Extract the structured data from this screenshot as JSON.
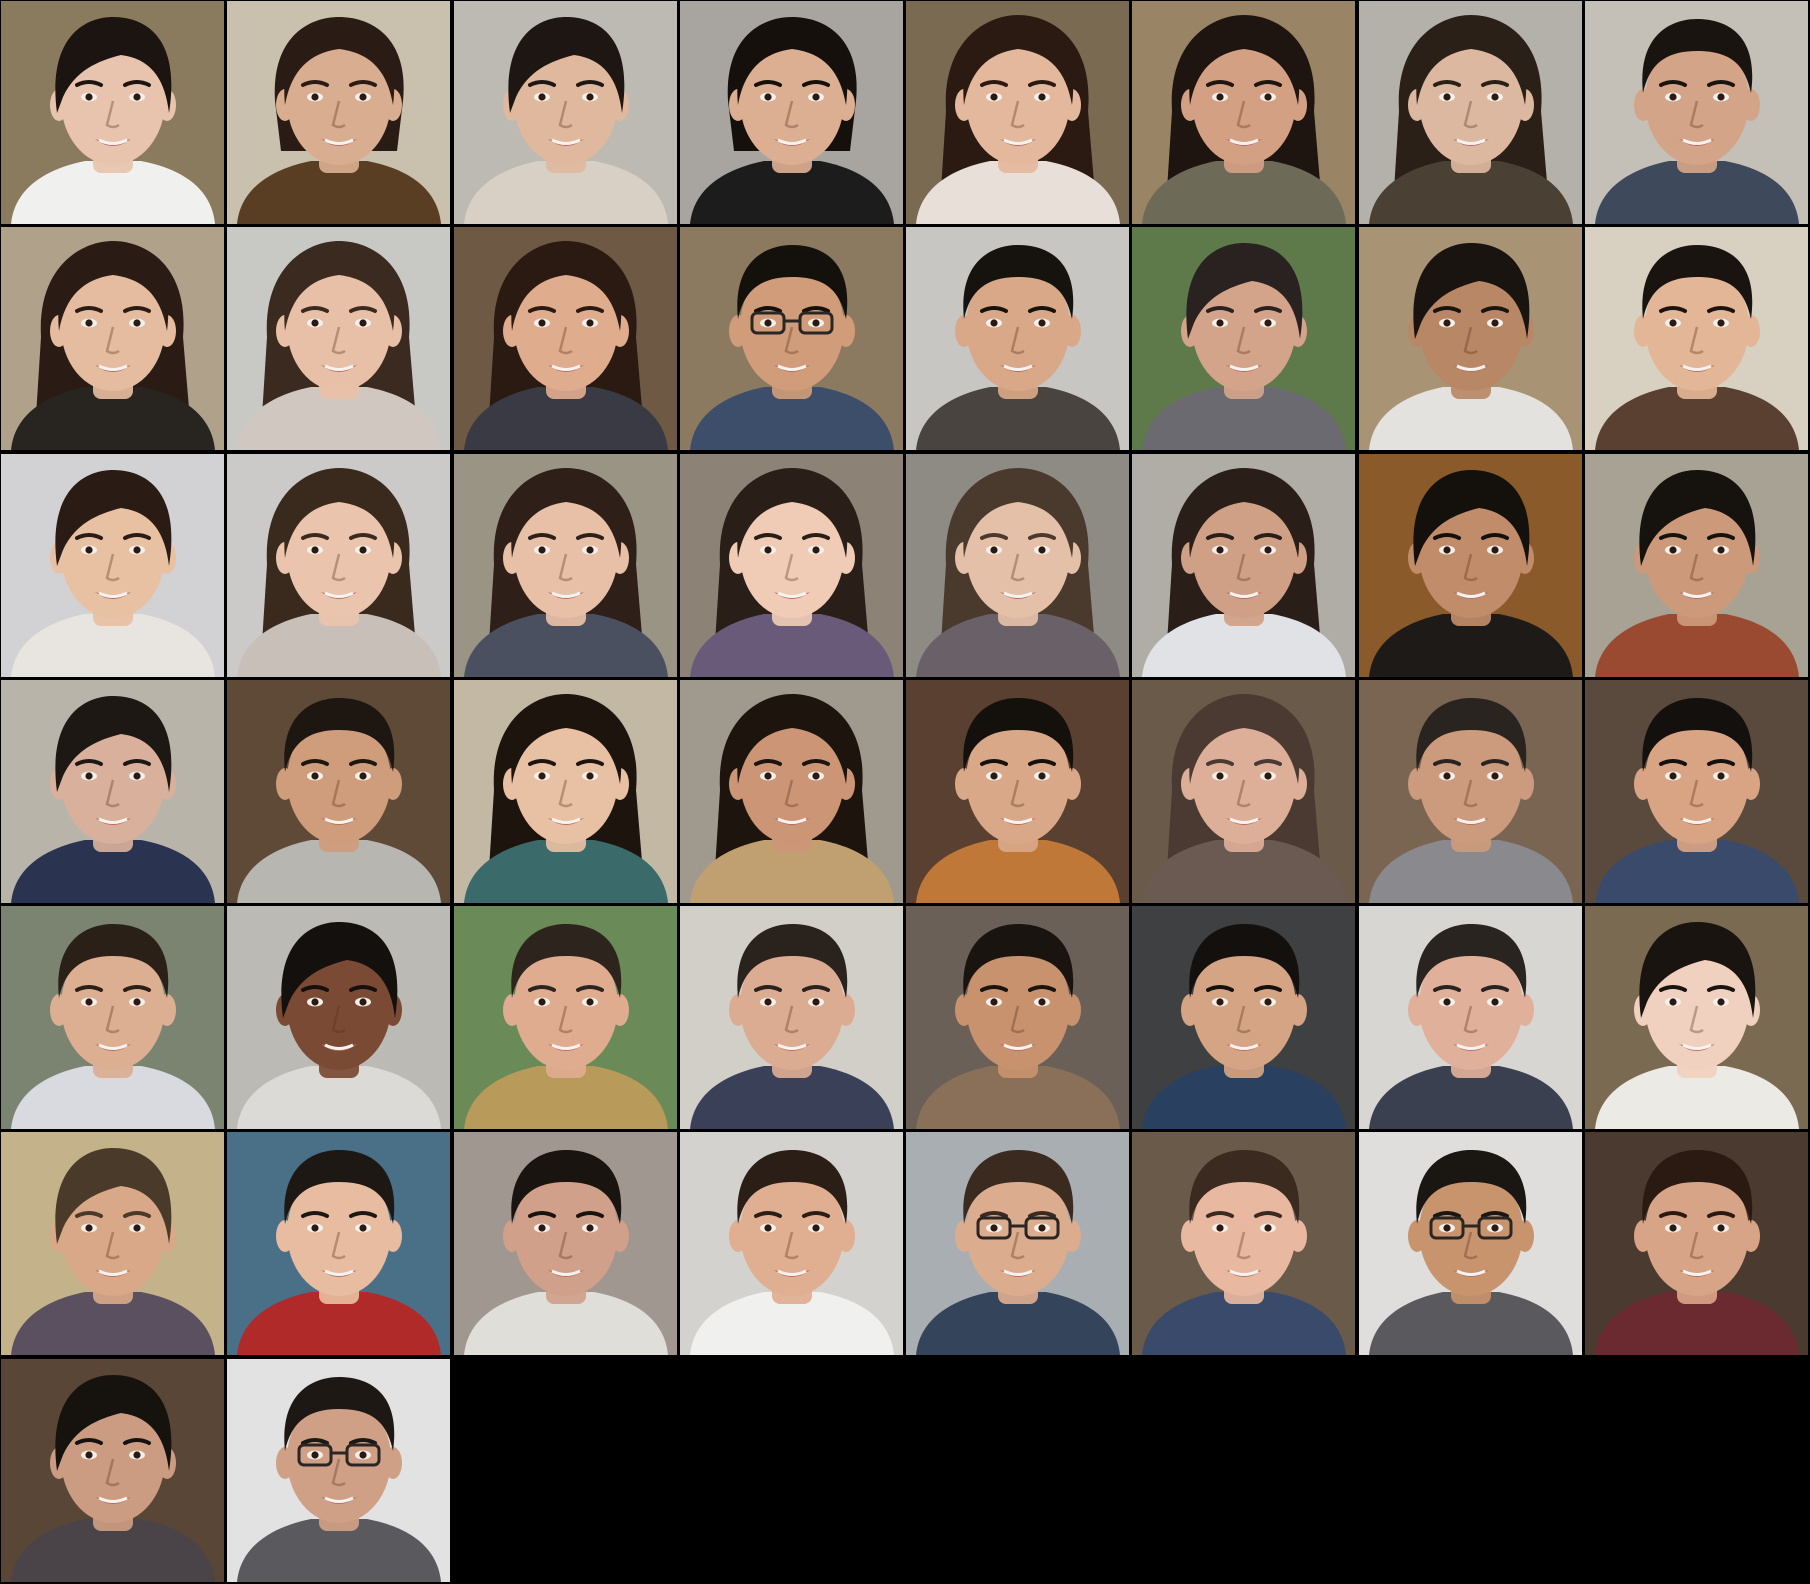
{
  "grid": {
    "columns": 8,
    "rows": 7,
    "background": "#000000",
    "faces": [
      {
        "bg": "#8a7a5e",
        "skin": "#e8c4ae",
        "hair": "#1c1410",
        "shirt": "#f0f0ee",
        "style": "short",
        "glasses": false
      },
      {
        "bg": "#c9c0ad",
        "skin": "#d9ad90",
        "hair": "#2a1c14",
        "shirt": "#5a3e24",
        "style": "tied",
        "glasses": false
      },
      {
        "bg": "#bdbab4",
        "skin": "#e0b89e",
        "hair": "#1e1612",
        "shirt": "#d8d0c4",
        "style": "short",
        "glasses": false
      },
      {
        "bg": "#a8a4a0",
        "skin": "#dcae92",
        "hair": "#16100c",
        "shirt": "#1c1c1c",
        "style": "tied",
        "glasses": false
      },
      {
        "bg": "#7a6a52",
        "skin": "#e4b89c",
        "hair": "#2a1a12",
        "shirt": "#e8e0d8",
        "style": "long",
        "glasses": false
      },
      {
        "bg": "#9a8466",
        "skin": "#d4a084",
        "hair": "#1e1410",
        "shirt": "#6e6a58",
        "style": "long",
        "glasses": false
      },
      {
        "bg": "#b4b0aa",
        "skin": "#dcb8a0",
        "hair": "#2a2018",
        "shirt": "#4a4034",
        "style": "long",
        "glasses": false
      },
      {
        "bg": "#c4c0b8",
        "skin": "#d4a488",
        "hair": "#1a1410",
        "shirt": "#3e4a5c",
        "style": "male",
        "glasses": false
      },
      {
        "bg": "#b0a28a",
        "skin": "#e6bca0",
        "hair": "#2a1c14",
        "shirt": "#282420",
        "style": "long",
        "glasses": false
      },
      {
        "bg": "#c8c8c4",
        "skin": "#e8c0a8",
        "hair": "#3a2a20",
        "shirt": "#d0c8c0",
        "style": "long",
        "glasses": false
      },
      {
        "bg": "#6e5a44",
        "skin": "#e0ac8e",
        "hair": "#2a1a12",
        "shirt": "#3a3a44",
        "style": "long",
        "glasses": false
      },
      {
        "bg": "#8c7a60",
        "skin": "#d09c7a",
        "hair": "#14100c",
        "shirt": "#3c4e6a",
        "style": "male",
        "glasses": true
      },
      {
        "bg": "#c8c6c2",
        "skin": "#d8a888",
        "hair": "#16120e",
        "shirt": "#4a4440",
        "style": "male",
        "glasses": false
      },
      {
        "bg": "#5e7a4a",
        "skin": "#d4a48a",
        "hair": "#2a2220",
        "shirt": "#6a6a70",
        "style": "short",
        "glasses": false
      },
      {
        "bg": "#a89474",
        "skin": "#b88866",
        "hair": "#1a1410",
        "shirt": "#e4e2de",
        "style": "short",
        "glasses": false
      },
      {
        "bg": "#d8d0c0",
        "skin": "#e2b696",
        "hair": "#1a1410",
        "shirt": "#5a4030",
        "style": "male",
        "glasses": false
      },
      {
        "bg": "#d2d2d4",
        "skin": "#e8c0a2",
        "hair": "#2a1c14",
        "shirt": "#e8e4e0",
        "style": "short",
        "glasses": false
      },
      {
        "bg": "#cccac8",
        "skin": "#eac4ac",
        "hair": "#3a2a1e",
        "shirt": "#c8c0b8",
        "style": "long",
        "glasses": false
      },
      {
        "bg": "#9a9484",
        "skin": "#e8c0a8",
        "hair": "#2e2018",
        "shirt": "#4a5060",
        "style": "long",
        "glasses": false
      },
      {
        "bg": "#8c8276",
        "skin": "#f0ccb6",
        "hair": "#2a1e18",
        "shirt": "#6a5a7a",
        "style": "long",
        "glasses": false
      },
      {
        "bg": "#8e8a84",
        "skin": "#e4c0a8",
        "hair": "#4a3a2e",
        "shirt": "#6a6068",
        "style": "long",
        "glasses": false
      },
      {
        "bg": "#b0aca6",
        "skin": "#d0a086",
        "hair": "#2a1e18",
        "shirt": "#e0e2e6",
        "style": "long",
        "glasses": false
      },
      {
        "bg": "#8a5a2a",
        "skin": "#c08c6a",
        "hair": "#14100c",
        "shirt": "#1e1a18",
        "style": "short",
        "glasses": false
      },
      {
        "bg": "#a8a294",
        "skin": "#cc9a7a",
        "hair": "#16120e",
        "shirt": "#9a4a30",
        "style": "short",
        "glasses": false
      },
      {
        "bg": "#b8b4aa",
        "skin": "#d8b09c",
        "hair": "#1e1814",
        "shirt": "#2a3450",
        "style": "short",
        "glasses": false
      },
      {
        "bg": "#5e4a36",
        "skin": "#cf9c7c",
        "hair": "#1e1610",
        "shirt": "#b8b6b0",
        "style": "male",
        "glasses": false
      },
      {
        "bg": "#c2b8a4",
        "skin": "#e8c0a4",
        "hair": "#1e140e",
        "shirt": "#3a6a6a",
        "style": "long",
        "glasses": false
      },
      {
        "bg": "#a09a8e",
        "skin": "#cc9676",
        "hair": "#1e140e",
        "shirt": "#c0a070",
        "style": "long",
        "glasses": false
      },
      {
        "bg": "#5a4030",
        "skin": "#d8a888",
        "hair": "#14100c",
        "shirt": "#c07838",
        "style": "male",
        "glasses": false
      },
      {
        "bg": "#6a5a4a",
        "skin": "#ddae98",
        "hair": "#4a3a32",
        "shirt": "#6a5a52",
        "style": "long",
        "glasses": false
      },
      {
        "bg": "#7a6452",
        "skin": "#cc9a7c",
        "hair": "#2a2420",
        "shirt": "#8a8a8e",
        "style": "male",
        "glasses": false
      },
      {
        "bg": "#5a4a3e",
        "skin": "#d8a484",
        "hair": "#14100e",
        "shirt": "#3a4a6a",
        "style": "male",
        "glasses": false
      },
      {
        "bg": "#7a8470",
        "skin": "#dcae92",
        "hair": "#2a2018",
        "shirt": "#d8dae0",
        "style": "male",
        "glasses": false
      },
      {
        "bg": "#bcbab4",
        "skin": "#7a4a34",
        "hair": "#14100e",
        "shirt": "#dcdad6",
        "style": "short",
        "glasses": false
      },
      {
        "bg": "#6a8a58",
        "skin": "#e0ac90",
        "hair": "#2e241e",
        "shirt": "#b89a5a",
        "style": "male",
        "glasses": false
      },
      {
        "bg": "#d2cec8",
        "skin": "#dcac92",
        "hair": "#2a221c",
        "shirt": "#3a4058",
        "style": "male",
        "glasses": false
      },
      {
        "bg": "#6a6058",
        "skin": "#c8926e",
        "hair": "#1a1410",
        "shirt": "#8a7058",
        "style": "male",
        "glasses": false
      },
      {
        "bg": "#3e4042",
        "skin": "#d4a484",
        "hair": "#14100e",
        "shirt": "#2a4060",
        "style": "male",
        "glasses": false
      },
      {
        "bg": "#d8d6d2",
        "skin": "#e0b09a",
        "hair": "#2a2420",
        "shirt": "#3a4050",
        "style": "male",
        "glasses": false
      },
      {
        "bg": "#7a6a52",
        "skin": "#f0d0be",
        "hair": "#1a1410",
        "shirt": "#eceae4",
        "style": "short",
        "glasses": false
      },
      {
        "bg": "#c4b28a",
        "skin": "#d8a888",
        "hair": "#4a3a2a",
        "shirt": "#5a5060",
        "style": "short",
        "glasses": false
      },
      {
        "bg": "#4a7088",
        "skin": "#e8bca0",
        "hair": "#1e1814",
        "shirt": "#b02a2a",
        "style": "male",
        "glasses": false
      },
      {
        "bg": "#a09890",
        "skin": "#d0a08a",
        "hair": "#1a1410",
        "shirt": "#e0ded8",
        "style": "male",
        "glasses": false
      },
      {
        "bg": "#d4d2ce",
        "skin": "#e0ae90",
        "hair": "#2a1e16",
        "shirt": "#f0f0ee",
        "style": "male",
        "glasses": false
      },
      {
        "bg": "#a8aeb2",
        "skin": "#dcac8e",
        "hair": "#3a2a20",
        "shirt": "#34445a",
        "style": "male",
        "glasses": true
      },
      {
        "bg": "#6a5a4a",
        "skin": "#e8b8a0",
        "hair": "#3a2a20",
        "shirt": "#3a4a6a",
        "style": "male",
        "glasses": false
      },
      {
        "bg": "#e0dedc",
        "skin": "#c8946e",
        "hair": "#1a1612",
        "shirt": "#5a5a5e",
        "style": "male",
        "glasses": true
      },
      {
        "bg": "#4a3a30",
        "skin": "#d8a488",
        "hair": "#2a1a12",
        "shirt": "#6a2a30",
        "style": "male",
        "glasses": false
      },
      {
        "bg": "#5a4636",
        "skin": "#cc9c82",
        "hair": "#16120e",
        "shirt": "#4a4448",
        "style": "short",
        "glasses": false
      },
      {
        "bg": "#e2e2e2",
        "skin": "#d0a086",
        "hair": "#1e1814",
        "shirt": "#5a5a5e",
        "style": "male",
        "glasses": true
      }
    ]
  }
}
